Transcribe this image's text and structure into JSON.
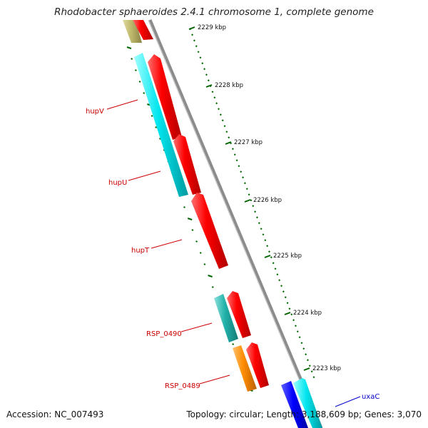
{
  "title": "Rhodobacter sphaeroides 2.4.1 chromosome 1, complete genome",
  "footer": {
    "accession": "Accession: NC_007493",
    "summary": "Topology: circular; Length: 3,188,609 bp; Genes: 3,070"
  },
  "kbp_ticks": [
    {
      "label": "2229 kbp"
    },
    {
      "label": "2228 kbp"
    },
    {
      "label": "2227 kbp"
    },
    {
      "label": "2226 kbp"
    },
    {
      "label": "2225 kbp"
    },
    {
      "label": "2224 kbp"
    },
    {
      "label": "2223 kbp"
    }
  ],
  "gene_labels": [
    {
      "name": "hupV",
      "color": "#cc0000"
    },
    {
      "name": "hupU",
      "color": "#cc0000"
    },
    {
      "name": "hupT",
      "color": "#cc0000"
    },
    {
      "name": "RSP_0490",
      "color": "#cc0000"
    },
    {
      "name": "RSP_0489",
      "color": "#cc0000"
    },
    {
      "name": "uxaC",
      "color": "#0000cc"
    }
  ],
  "colors": {
    "forward_cds": "#ff0000",
    "reverse_cds": "#00e5ee",
    "teal_cds": "#20b2aa",
    "orange_cds": "#ff8c00",
    "olive_cds": "#bdb76b",
    "blue_cds": "#0000ff",
    "backbone": "#8c8c8c",
    "tick": "#006400"
  }
}
